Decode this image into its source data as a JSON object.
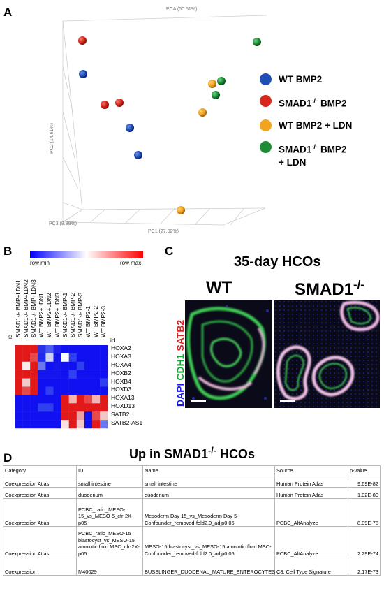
{
  "panels": {
    "a": "A",
    "b": "B",
    "c": "C",
    "d": "D"
  },
  "pca": {
    "title": "PCA (50.51%)",
    "y_axis": "PC2 (14.61%)",
    "x_axis": "PC1 (27.02%)",
    "z_axis": "PC3 (8.89%)",
    "legend": [
      {
        "label": "WT BMP2",
        "sup": "",
        "label_after": "",
        "label2": "",
        "color": "#1f4fb5"
      },
      {
        "label": "SMAD1",
        "sup": "-/-",
        "label_after": " BMP2",
        "label2": "",
        "color": "#d8271c"
      },
      {
        "label": "WT BMP2 + LDN",
        "sup": "",
        "label_after": "",
        "label2": "",
        "color": "#f0a420"
      },
      {
        "label": "SMAD1",
        "sup": "-/-",
        "label_after": " BMP2",
        "label2": "+ LDN",
        "color": "#1e8c36"
      }
    ]
  },
  "heatmap": {
    "scale_min": "row min",
    "scale_max": "row max",
    "corner_label": "id",
    "corner_rot": "id",
    "columns": [
      "SMAD1-/- BMP+LDN1",
      "SMAD1-/- BMP+LDN2",
      "SMAD1-/- BMP+LDN3",
      "WT BMP2+LDN1",
      "WT BMP2+LDN2",
      "WT BMP2+LDN3",
      "SMAD1-/- BMP-1",
      "SMAD1-/- BMP-2",
      "SMAD1-/- BMP-3",
      "WT BMP2-1",
      "WT BMP2-2",
      "WT BMP2-3"
    ],
    "rows": [
      "HOXA2",
      "HOXA3",
      "HOXA4",
      "HOXB2",
      "HOXB4",
      "HOXD3",
      "HOXA13",
      "HOXD13",
      "SATB2",
      "SATB2-AS1"
    ]
  },
  "microscopy": {
    "title": "35-day HCOs",
    "wt_label": "WT",
    "ko_label": "SMAD1",
    "ko_sup": "-/-",
    "stain_dapi": "DAPI",
    "stain_cdh1": "CDH1",
    "stain_satb2": "SATB2"
  },
  "table": {
    "title_prefix": "Up in SMAD1",
    "title_sup": "-/-",
    "title_suffix": " HCOs",
    "headers": [
      "Category",
      "ID",
      "Name",
      "Source",
      "p-value"
    ],
    "rows": [
      [
        "Coexpression Atlas",
        "small intestine",
        "small intestine",
        "Human Protein Atlas",
        "9.69E-82"
      ],
      [
        "Coexpression Atlas",
        "duodenum",
        "duodenum",
        "Human Protein Atlas",
        "1.02E-80"
      ],
      [
        "Coexpression Atlas",
        "PCBC_ratio_MESO-15_vs_MESO-5_cfr-2X-p05",
        "Mesoderm Day 15_vs_Mesoderm Day 5-Confounder_removed-fold2.0_adjp0.05",
        "PCBC_AltAnalyze",
        "8.09E-78"
      ],
      [
        "Coexpression Atlas",
        "PCBC_ratio_MESO-15 blastocyst_vs_MESO-15 amniotic fluid MSC_cfr-2X-p05",
        "MESO-15 blastocyst_vs_MESO-15 amniotic fluid MSC-Confounder_removed-fold2.0_adjp0.05",
        "PCBC_AltAnalyze",
        "2.29E-74"
      ],
      [
        "Coexpression",
        "M40029",
        "BUSSLINGER_DUODENAL_MATURE_ENTEROCYTES",
        "C8: Cell Type Signature",
        "2.17E-73"
      ]
    ]
  },
  "colors": {
    "wt_bmp2": "#1f4fb5",
    "smad1_bmp2": "#d8271c",
    "wt_ldn": "#f0a420",
    "smad1_ldn": "#1e8c36"
  }
}
